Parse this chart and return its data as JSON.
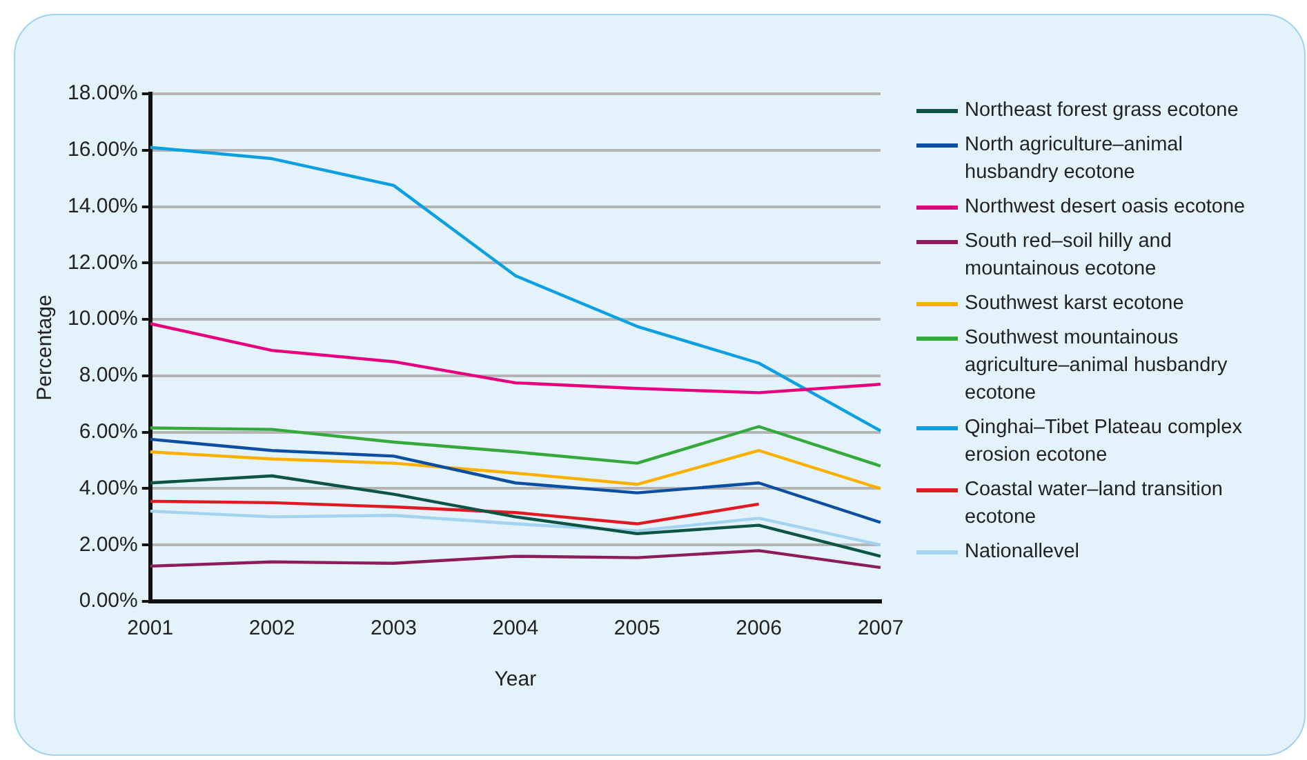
{
  "chart_data": {
    "type": "line",
    "xlabel": "Year",
    "ylabel": "Percentage",
    "categories": [
      "2001",
      "2002",
      "2003",
      "2004",
      "2005",
      "2006",
      "2007"
    ],
    "ylim": [
      0,
      18
    ],
    "yticks": [
      {
        "value": 0,
        "label": "0.00%"
      },
      {
        "value": 2,
        "label": "2.00%"
      },
      {
        "value": 4,
        "label": "4.00%"
      },
      {
        "value": 6,
        "label": "6.00%"
      },
      {
        "value": 8,
        "label": "8.00%"
      },
      {
        "value": 10,
        "label": "10.00%"
      },
      {
        "value": 12,
        "label": "12.00%"
      },
      {
        "value": 14,
        "label": "14.00%"
      },
      {
        "value": 16,
        "label": "16.00%"
      },
      {
        "value": 18,
        "label": "18.00%"
      }
    ],
    "grid": "y",
    "legend": "right",
    "marker": "none",
    "line_style": "solid",
    "series": [
      {
        "name": "Northeast forest grass ecotone",
        "color": "#0d5444",
        "values": [
          4.2,
          4.45,
          3.8,
          3.0,
          2.4,
          2.7,
          1.6
        ]
      },
      {
        "name": "North agriculture–animal husbandry ecotone",
        "color": "#0b4ea2",
        "values": [
          5.75,
          5.35,
          5.15,
          4.2,
          3.85,
          4.2,
          2.8
        ]
      },
      {
        "name": "Northwest desert oasis ecotone",
        "color": "#e6007e",
        "values": [
          9.85,
          8.9,
          8.5,
          7.75,
          7.55,
          7.4,
          7.7
        ]
      },
      {
        "name": "South red–soil hilly and mountainous ecotone",
        "color": "#8c1d5a",
        "values": [
          1.25,
          1.4,
          1.35,
          1.6,
          1.55,
          1.8,
          1.2
        ]
      },
      {
        "name": "Southwest karst ecotone",
        "color": "#fbb000",
        "values": [
          5.3,
          5.05,
          4.9,
          4.55,
          4.15,
          5.35,
          4.0
        ]
      },
      {
        "name": "Southwest mountainous agriculture–animal husbandry ecotone",
        "color": "#35a93b",
        "values": [
          6.15,
          6.1,
          5.65,
          5.3,
          4.9,
          6.2,
          4.8
        ]
      },
      {
        "name": "Qinghai–Tibet Plateau complex erosion ecotone",
        "color": "#0ca0e3",
        "values": [
          16.1,
          15.7,
          14.75,
          11.55,
          9.75,
          8.45,
          6.05
        ]
      },
      {
        "name": "Coastal water–land transition ecotone",
        "color": "#e01a22",
        "values": [
          3.55,
          3.5,
          3.35,
          3.15,
          2.75,
          3.45,
          null
        ]
      },
      {
        "name": "Nationallevel",
        "color": "#a3d3f0",
        "values": [
          3.2,
          3.0,
          3.05,
          2.75,
          2.5,
          2.95,
          2.0
        ]
      }
    ]
  }
}
